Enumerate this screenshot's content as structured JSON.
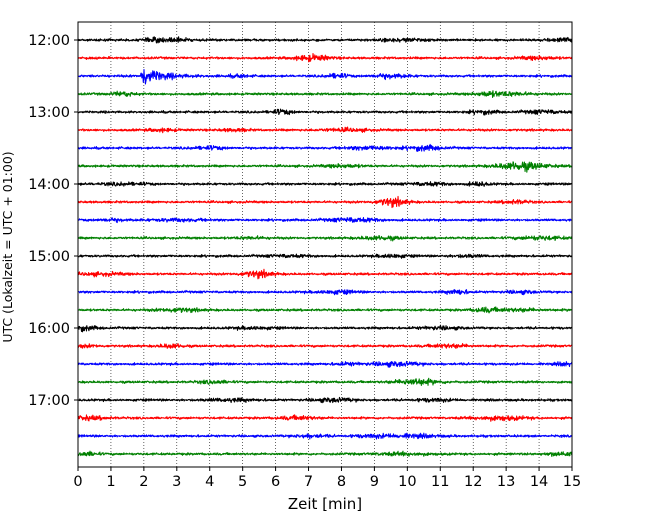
{
  "chart_data": {
    "type": "line",
    "title": "",
    "xlabel": "Zeit  [min]",
    "ylabel": "UTC (Lokalzeit = UTC + 01:00)",
    "xlim": [
      0,
      15
    ],
    "xticks": [
      0,
      1,
      2,
      3,
      4,
      5,
      6,
      7,
      8,
      9,
      10,
      11,
      12,
      13,
      14,
      15
    ],
    "ytick_labels": [
      "12:00",
      "13:00",
      "14:00",
      "15:00",
      "16:00",
      "17:00"
    ],
    "grid": "vertical dotted",
    "legend": "none",
    "trace_interval_minutes": 15,
    "trace_count": 24,
    "trace_start": "12:00",
    "color_cycle": [
      "#000000",
      "#ff0000",
      "#0000ff",
      "#008000"
    ],
    "event": {
      "trace_start": "12:30",
      "x_start_min": 1.9,
      "x_peak_min": 2.3,
      "description_hidden": ""
    }
  }
}
